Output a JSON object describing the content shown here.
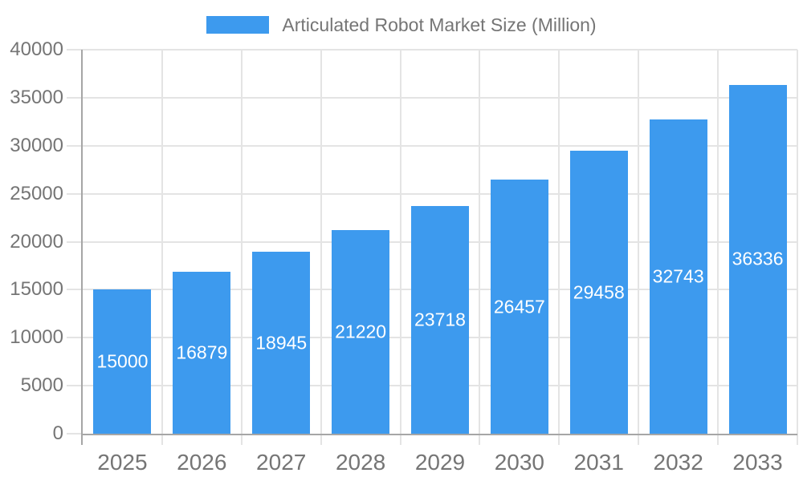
{
  "chart_data": {
    "type": "bar",
    "title": "",
    "legend": "Articulated Robot Market Size (Million)",
    "legend_position": "top-center",
    "categories": [
      "2025",
      "2026",
      "2027",
      "2028",
      "2029",
      "2030",
      "2031",
      "2032",
      "2033"
    ],
    "values": [
      15000,
      16879,
      18945,
      21220,
      23718,
      26457,
      29458,
      32743,
      36336
    ],
    "xlabel": "",
    "ylabel": "",
    "ylim": [
      0,
      40000
    ],
    "ytick_step": 5000,
    "yticks": [
      0,
      5000,
      10000,
      15000,
      20000,
      25000,
      30000,
      35000,
      40000
    ],
    "grid": true,
    "grid_vertical": true,
    "bar_value_labels_shown": true,
    "colors": {
      "bar": "#3D9AEE",
      "grid": "#E4E4E4",
      "axis": "#A6A6A6",
      "axis_text": "#757575",
      "bar_label_text": "#FFFFFF",
      "background": "#FFFFFF"
    }
  }
}
